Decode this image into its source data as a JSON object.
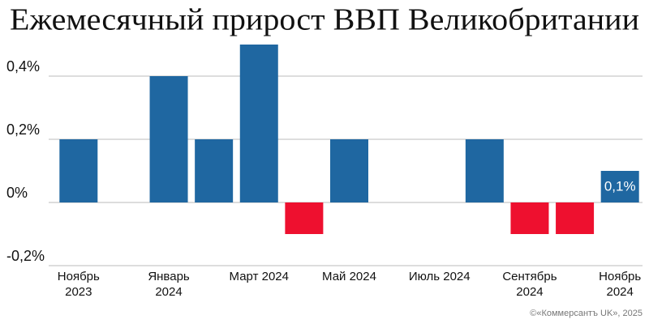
{
  "chart_data": {
    "type": "bar",
    "title": "Ежемесячный прирост ВВП Великобритании",
    "categories": [
      "Ноябрь 2023",
      null,
      "Январь 2024",
      null,
      "Март 2024",
      null,
      "Май 2024",
      null,
      "Июль 2024",
      null,
      "Сентябрь 2024",
      null,
      "Ноябрь 2024"
    ],
    "values": [
      0.2,
      0,
      0.4,
      0.2,
      0.5,
      -0.1,
      0.2,
      0,
      0,
      0.2,
      -0.1,
      -0.1,
      0.1
    ],
    "value_labels": [
      null,
      null,
      null,
      null,
      null,
      null,
      null,
      null,
      null,
      null,
      null,
      null,
      "0,1%"
    ],
    "color": "#1f67a1",
    "negative_color": "#ee102f",
    "ylim": [
      -0.2,
      0.5
    ],
    "yticks": [
      {
        "value": -0.2,
        "label": "-0,2%"
      },
      {
        "value": 0,
        "label": "0%"
      },
      {
        "value": 0.2,
        "label": "0,2%"
      },
      {
        "value": 0.4,
        "label": "0,4%"
      }
    ],
    "grid": true,
    "source": "©«Коммерсантъ UK», 2025"
  }
}
